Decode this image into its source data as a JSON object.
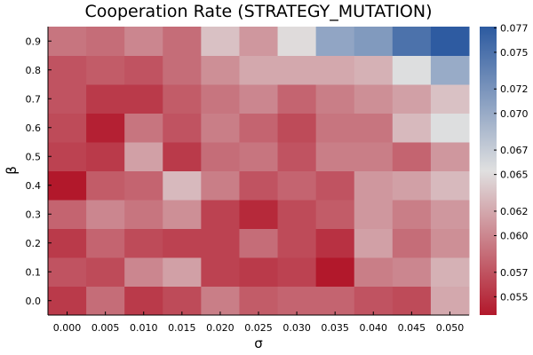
{
  "chart_data": {
    "type": "heatmap",
    "title": "Cooperation Rate (STRATEGY_MUTATION)",
    "xlabel": "σ",
    "ylabel": "β",
    "x_categories": [
      "0.000",
      "0.005",
      "0.010",
      "0.015",
      "0.020",
      "0.025",
      "0.030",
      "0.035",
      "0.040",
      "0.045",
      "0.050"
    ],
    "y_categories": [
      "0.0",
      "0.1",
      "0.2",
      "0.3",
      "0.4",
      "0.5",
      "0.6",
      "0.7",
      "0.8",
      "0.9"
    ],
    "values": [
      [
        0.0555,
        0.0585,
        0.0555,
        0.0565,
        0.0595,
        0.0575,
        0.058,
        0.058,
        0.057,
        0.0565,
        0.062
      ],
      [
        0.057,
        0.0565,
        0.06,
        0.0615,
        0.056,
        0.0555,
        0.056,
        0.0535,
        0.0595,
        0.06,
        0.0625
      ],
      [
        0.0555,
        0.058,
        0.0565,
        0.056,
        0.056,
        0.0585,
        0.0565,
        0.055,
        0.0615,
        0.0585,
        0.0605
      ],
      [
        0.058,
        0.06,
        0.059,
        0.0605,
        0.056,
        0.0545,
        0.0565,
        0.0575,
        0.061,
        0.0595,
        0.061
      ],
      [
        0.0535,
        0.0575,
        0.058,
        0.063,
        0.0595,
        0.057,
        0.058,
        0.057,
        0.061,
        0.0615,
        0.063
      ],
      [
        0.056,
        0.0555,
        0.0615,
        0.0555,
        0.0585,
        0.059,
        0.057,
        0.0595,
        0.0595,
        0.058,
        0.061
      ],
      [
        0.0565,
        0.054,
        0.059,
        0.057,
        0.0595,
        0.058,
        0.0565,
        0.059,
        0.059,
        0.063,
        0.0655
      ],
      [
        0.057,
        0.0555,
        0.0555,
        0.0575,
        0.059,
        0.06,
        0.058,
        0.0595,
        0.0605,
        0.0615,
        0.0635
      ],
      [
        0.057,
        0.0575,
        0.057,
        0.0585,
        0.0605,
        0.062,
        0.062,
        0.062,
        0.0625,
        0.0655,
        0.07
      ],
      [
        0.059,
        0.0585,
        0.06,
        0.0585,
        0.0635,
        0.061,
        0.065,
        0.0705,
        0.0715,
        0.075,
        0.077
      ]
    ],
    "colorbar": {
      "min": 0.0535,
      "max": 0.0771,
      "ticks": [
        0.055,
        0.057,
        0.06,
        0.062,
        0.065,
        0.067,
        0.07,
        0.072,
        0.075,
        0.077
      ],
      "tick_labels": [
        "0.055",
        "0.057",
        "0.060",
        "0.062",
        "0.065",
        "0.067",
        "0.070",
        "0.072",
        "0.075",
        "0.077"
      ]
    },
    "colormap": [
      "#b2182b",
      "#e0e0e0",
      "#2c5aa0"
    ],
    "grid": false
  }
}
